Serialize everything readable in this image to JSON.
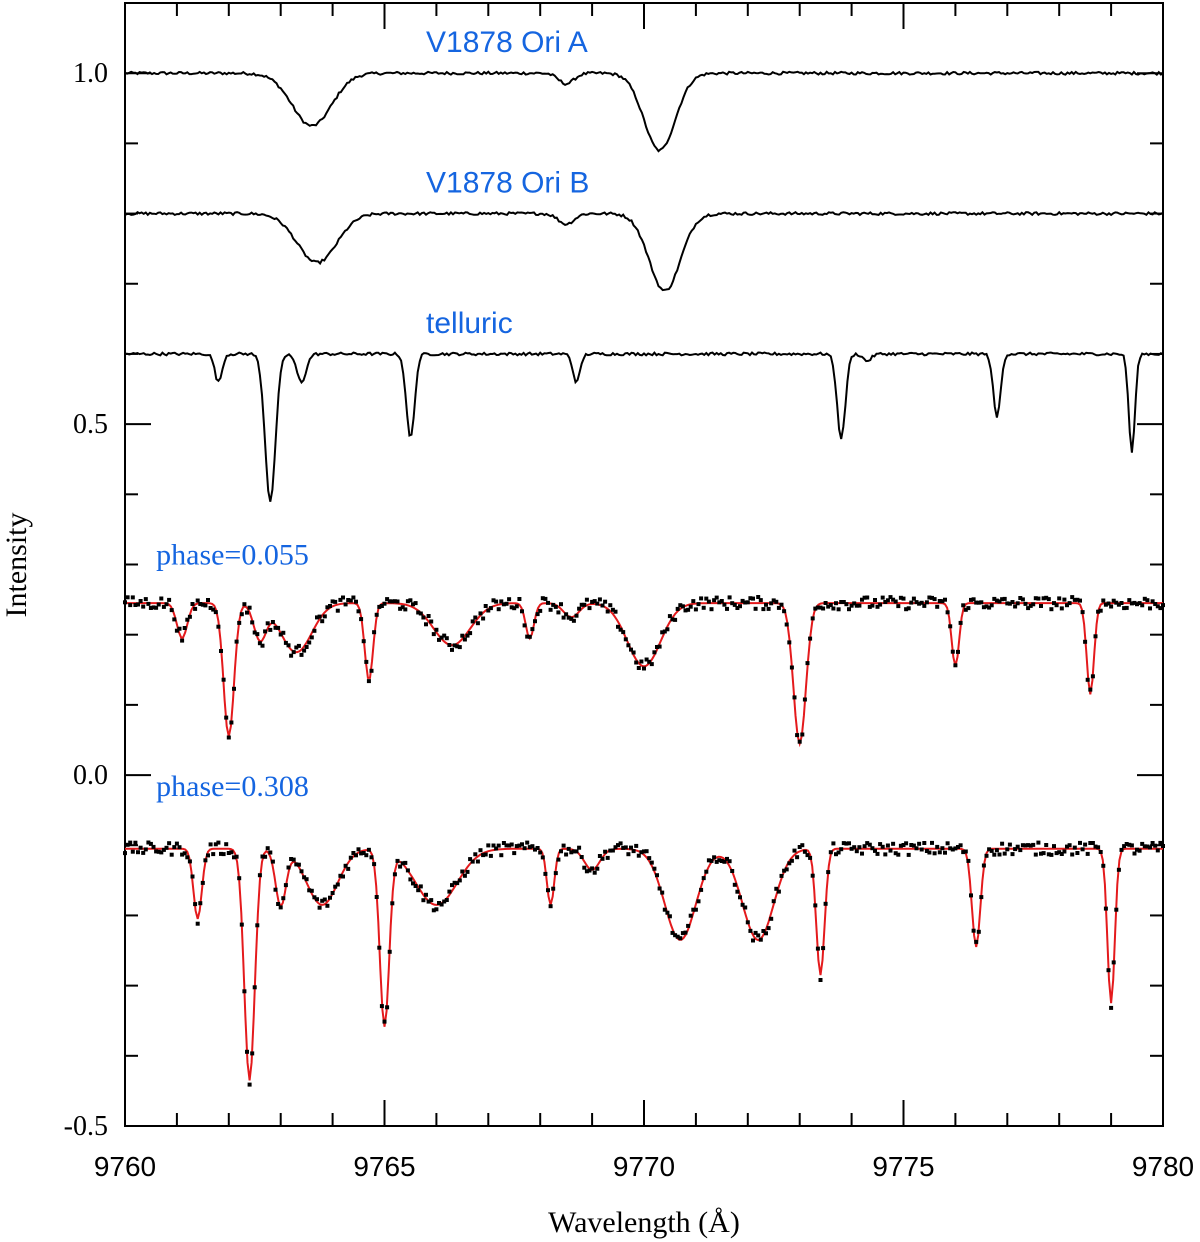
{
  "chart_data": {
    "type": "line",
    "title": "",
    "xlabel": "Wavelength (Å)",
    "ylabel": "Intensity",
    "xlim": [
      9760,
      9780
    ],
    "ylim": [
      -0.5,
      1.1
    ],
    "x_ticks": [
      "9760",
      "9765",
      "9770",
      "9775",
      "9780"
    ],
    "y_ticks": [
      "-0.5",
      "0.0",
      "0.5",
      "1.0"
    ],
    "grid": false,
    "annotations": [
      {
        "text": "V1878 Ori A",
        "x": 9765.8,
        "y": 1.03,
        "color": "#1565e0"
      },
      {
        "text": "V1878 Ori B",
        "x": 9765.8,
        "y": 0.83,
        "color": "#1565e0"
      },
      {
        "text": "telluric",
        "x": 9765.8,
        "y": 0.63,
        "color": "#1565e0"
      },
      {
        "text": "phase=0.055",
        "x": 9760.6,
        "y": 0.3,
        "color": "#1565e0"
      },
      {
        "text": "phase=0.308",
        "x": 9760.6,
        "y": -0.03,
        "color": "#1565e0"
      }
    ],
    "series": [
      {
        "name": "V1878 Ori A",
        "style": "line",
        "color": "#000000",
        "continuum": 1.0,
        "lines": [
          [
            9763.6,
            0.075,
            0.38
          ],
          [
            9768.5,
            0.015,
            0.15
          ],
          [
            9770.3,
            0.11,
            0.3
          ]
        ]
      },
      {
        "name": "V1878 Ori B",
        "style": "line",
        "color": "#000000",
        "continuum": 0.8,
        "lines": [
          [
            9763.7,
            0.07,
            0.38
          ],
          [
            9768.5,
            0.015,
            0.15
          ],
          [
            9770.4,
            0.11,
            0.3
          ]
        ]
      },
      {
        "name": "telluric",
        "style": "line",
        "color": "#000000",
        "continuum": 0.6,
        "lines": [
          [
            9761.8,
            0.04,
            0.07
          ],
          [
            9762.8,
            0.21,
            0.1
          ],
          [
            9763.4,
            0.04,
            0.09
          ],
          [
            9765.5,
            0.12,
            0.08
          ],
          [
            9768.7,
            0.04,
            0.07
          ],
          [
            9773.8,
            0.12,
            0.08
          ],
          [
            9774.3,
            0.01,
            0.08
          ],
          [
            9776.8,
            0.09,
            0.07
          ],
          [
            9779.4,
            0.14,
            0.06
          ]
        ]
      },
      {
        "name": "phase=0.055 model",
        "style": "line",
        "color": "#e41a1c",
        "continuum": 0.245,
        "lines": [
          [
            9761.1,
            0.05,
            0.1
          ],
          [
            9762.0,
            0.19,
            0.1
          ],
          [
            9762.6,
            0.05,
            0.12
          ],
          [
            9763.3,
            0.07,
            0.3
          ],
          [
            9764.7,
            0.11,
            0.08
          ],
          [
            9766.3,
            0.06,
            0.35
          ],
          [
            9767.8,
            0.05,
            0.08
          ],
          [
            9768.6,
            0.02,
            0.15
          ],
          [
            9770.0,
            0.09,
            0.32
          ],
          [
            9773.0,
            0.2,
            0.12
          ],
          [
            9776.0,
            0.09,
            0.07
          ],
          [
            9778.6,
            0.13,
            0.07
          ]
        ]
      },
      {
        "name": "phase=0.055 data",
        "style": "points",
        "color": "#000000",
        "continuum": 0.245,
        "lines": [
          [
            9761.1,
            0.05,
            0.1
          ],
          [
            9762.0,
            0.19,
            0.1
          ],
          [
            9762.6,
            0.05,
            0.12
          ],
          [
            9763.3,
            0.07,
            0.3
          ],
          [
            9764.7,
            0.11,
            0.08
          ],
          [
            9766.3,
            0.06,
            0.35
          ],
          [
            9767.8,
            0.05,
            0.08
          ],
          [
            9768.6,
            0.02,
            0.15
          ],
          [
            9770.0,
            0.09,
            0.32
          ],
          [
            9773.0,
            0.2,
            0.12
          ],
          [
            9776.0,
            0.09,
            0.07
          ],
          [
            9778.6,
            0.13,
            0.07
          ]
        ]
      },
      {
        "name": "phase=0.308 model",
        "style": "line",
        "color": "#e41a1c",
        "continuum": -0.105,
        "lines": [
          [
            9761.4,
            0.1,
            0.08
          ],
          [
            9762.4,
            0.33,
            0.1
          ],
          [
            9763.0,
            0.08,
            0.1
          ],
          [
            9763.8,
            0.08,
            0.3
          ],
          [
            9765.0,
            0.25,
            0.09
          ],
          [
            9766.0,
            0.08,
            0.4
          ],
          [
            9768.2,
            0.08,
            0.07
          ],
          [
            9769.0,
            0.03,
            0.15
          ],
          [
            9770.7,
            0.13,
            0.3
          ],
          [
            9772.2,
            0.13,
            0.3
          ],
          [
            9773.4,
            0.18,
            0.08
          ],
          [
            9776.4,
            0.14,
            0.08
          ],
          [
            9779.0,
            0.22,
            0.07
          ]
        ]
      },
      {
        "name": "phase=0.308 data",
        "style": "points",
        "color": "#000000",
        "continuum": -0.105,
        "lines": [
          [
            9761.4,
            0.1,
            0.08
          ],
          [
            9762.4,
            0.33,
            0.1
          ],
          [
            9763.0,
            0.08,
            0.1
          ],
          [
            9763.8,
            0.08,
            0.3
          ],
          [
            9765.0,
            0.25,
            0.09
          ],
          [
            9766.0,
            0.08,
            0.4
          ],
          [
            9768.2,
            0.08,
            0.07
          ],
          [
            9769.0,
            0.03,
            0.15
          ],
          [
            9770.7,
            0.13,
            0.3
          ],
          [
            9772.2,
            0.13,
            0.3
          ],
          [
            9773.4,
            0.18,
            0.08
          ],
          [
            9776.4,
            0.14,
            0.08
          ],
          [
            9779.0,
            0.22,
            0.07
          ]
        ]
      }
    ]
  }
}
